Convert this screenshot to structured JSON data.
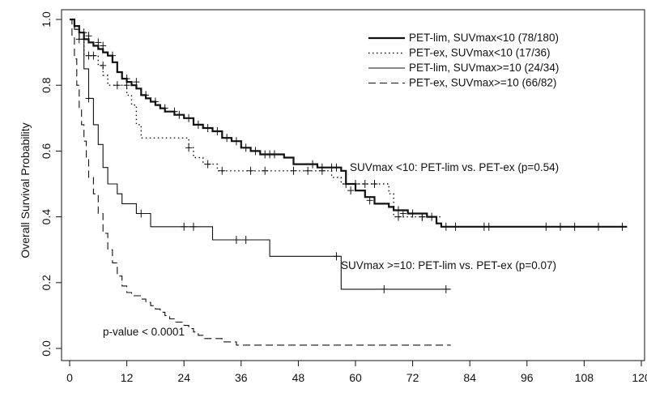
{
  "chart_data": {
    "type": "line",
    "subtype": "kaplan-meier",
    "ylabel": "Overall Survival Probability",
    "xlabel": "",
    "xlim": [
      0,
      120
    ],
    "ylim": [
      0,
      1
    ],
    "x_ticks": [
      0,
      12,
      24,
      36,
      48,
      60,
      72,
      84,
      96,
      108,
      120
    ],
    "y_ticks": [
      "0.0",
      "0.2",
      "0.4",
      "0.6",
      "0.8",
      "1.0"
    ],
    "grid": false,
    "legend_position": "top-right",
    "series": [
      {
        "name": "PET-lim, SUVmax<10 (78/180)",
        "line_style": "solid-thick",
        "steps": [
          [
            0,
            1.0
          ],
          [
            1,
            0.98
          ],
          [
            2,
            0.96
          ],
          [
            3,
            0.94
          ],
          [
            4,
            0.93
          ],
          [
            5,
            0.92
          ],
          [
            6,
            0.91
          ],
          [
            7,
            0.9
          ],
          [
            8,
            0.89
          ],
          [
            9,
            0.87
          ],
          [
            10,
            0.84
          ],
          [
            11,
            0.82
          ],
          [
            12,
            0.81
          ],
          [
            13,
            0.8
          ],
          [
            14,
            0.79
          ],
          [
            15,
            0.77
          ],
          [
            16,
            0.76
          ],
          [
            17,
            0.75
          ],
          [
            18,
            0.74
          ],
          [
            19,
            0.73
          ],
          [
            20,
            0.72
          ],
          [
            22,
            0.71
          ],
          [
            24,
            0.7
          ],
          [
            26,
            0.68
          ],
          [
            28,
            0.67
          ],
          [
            30,
            0.66
          ],
          [
            32,
            0.64
          ],
          [
            34,
            0.63
          ],
          [
            36,
            0.61
          ],
          [
            38,
            0.6
          ],
          [
            40,
            0.59
          ],
          [
            44,
            0.59
          ],
          [
            45,
            0.58
          ],
          [
            47,
            0.56
          ],
          [
            50,
            0.56
          ],
          [
            52,
            0.55
          ],
          [
            56,
            0.55
          ],
          [
            57,
            0.54
          ],
          [
            58,
            0.5
          ],
          [
            60,
            0.48
          ],
          [
            62,
            0.46
          ],
          [
            64,
            0.44
          ],
          [
            67,
            0.43
          ],
          [
            68,
            0.42
          ],
          [
            71,
            0.41
          ],
          [
            75,
            0.4
          ],
          [
            77,
            0.38
          ],
          [
            78,
            0.37
          ],
          [
            117,
            0.37
          ]
        ],
        "censors": [
          [
            3,
            0.96
          ],
          [
            4,
            0.95
          ],
          [
            6,
            0.93
          ],
          [
            7,
            0.92
          ],
          [
            9,
            0.89
          ],
          [
            12,
            0.82
          ],
          [
            14,
            0.81
          ],
          [
            16,
            0.77
          ],
          [
            18,
            0.75
          ],
          [
            20,
            0.73
          ],
          [
            22,
            0.72
          ],
          [
            23,
            0.71
          ],
          [
            25,
            0.7
          ],
          [
            27,
            0.68
          ],
          [
            29,
            0.67
          ],
          [
            31,
            0.66
          ],
          [
            33,
            0.64
          ],
          [
            35,
            0.63
          ],
          [
            37,
            0.61
          ],
          [
            39,
            0.6
          ],
          [
            41,
            0.59
          ],
          [
            42,
            0.59
          ],
          [
            43,
            0.59
          ],
          [
            51,
            0.56
          ],
          [
            53,
            0.55
          ],
          [
            55,
            0.55
          ],
          [
            56,
            0.55
          ],
          [
            59,
            0.48
          ],
          [
            63,
            0.45
          ],
          [
            69,
            0.42
          ],
          [
            70,
            0.41
          ],
          [
            72,
            0.41
          ],
          [
            74,
            0.4
          ],
          [
            76,
            0.4
          ],
          [
            79,
            0.37
          ],
          [
            81,
            0.37
          ],
          [
            87,
            0.37
          ],
          [
            88,
            0.37
          ],
          [
            100,
            0.37
          ],
          [
            103,
            0.37
          ],
          [
            106,
            0.37
          ],
          [
            111,
            0.37
          ],
          [
            116,
            0.37
          ]
        ]
      },
      {
        "name": "PET-ex, SUVmax<10 (17/36)",
        "line_style": "dotted",
        "steps": [
          [
            0,
            1.0
          ],
          [
            1,
            0.97
          ],
          [
            2,
            0.94
          ],
          [
            3,
            0.89
          ],
          [
            6,
            0.86
          ],
          [
            7,
            0.83
          ],
          [
            8,
            0.8
          ],
          [
            12,
            0.77
          ],
          [
            13,
            0.74
          ],
          [
            14,
            0.68
          ],
          [
            15,
            0.64
          ],
          [
            24,
            0.64
          ],
          [
            25,
            0.61
          ],
          [
            26,
            0.58
          ],
          [
            28,
            0.56
          ],
          [
            31,
            0.54
          ],
          [
            46,
            0.54
          ],
          [
            52,
            0.54
          ],
          [
            55,
            0.52
          ],
          [
            57,
            0.5
          ],
          [
            67,
            0.47
          ],
          [
            68,
            0.4
          ],
          [
            78,
            0.4
          ]
        ],
        "censors": [
          [
            2,
            0.94
          ],
          [
            4,
            0.89
          ],
          [
            5,
            0.89
          ],
          [
            7,
            0.86
          ],
          [
            10,
            0.8
          ],
          [
            12,
            0.8
          ],
          [
            25,
            0.61
          ],
          [
            29,
            0.56
          ],
          [
            32,
            0.54
          ],
          [
            38,
            0.54
          ],
          [
            41,
            0.54
          ],
          [
            47,
            0.54
          ],
          [
            50,
            0.54
          ],
          [
            53,
            0.54
          ],
          [
            58,
            0.5
          ],
          [
            60,
            0.5
          ],
          [
            62,
            0.5
          ],
          [
            64,
            0.5
          ],
          [
            69,
            0.4
          ],
          [
            74,
            0.4
          ]
        ]
      },
      {
        "name": "PET-lim, SUVmax>=10 (24/34)",
        "line_style": "solid-thin",
        "steps": [
          [
            0,
            1.0
          ],
          [
            1,
            0.97
          ],
          [
            2,
            0.94
          ],
          [
            3,
            0.85
          ],
          [
            4,
            0.76
          ],
          [
            5,
            0.68
          ],
          [
            6,
            0.62
          ],
          [
            7,
            0.55
          ],
          [
            8,
            0.5
          ],
          [
            10,
            0.47
          ],
          [
            11,
            0.44
          ],
          [
            14,
            0.41
          ],
          [
            17,
            0.37
          ],
          [
            29,
            0.37
          ],
          [
            30,
            0.33
          ],
          [
            41,
            0.33
          ],
          [
            42,
            0.28
          ],
          [
            56,
            0.28
          ],
          [
            57,
            0.18
          ],
          [
            80,
            0.18
          ]
        ],
        "censors": [
          [
            4,
            0.76
          ],
          [
            15,
            0.41
          ],
          [
            24,
            0.37
          ],
          [
            26,
            0.37
          ],
          [
            35,
            0.33
          ],
          [
            37,
            0.33
          ],
          [
            56,
            0.28
          ],
          [
            66,
            0.18
          ],
          [
            79,
            0.18
          ]
        ]
      },
      {
        "name": "PET-ex, SUVmax>=10 (66/82)",
        "line_style": "dashed",
        "steps": [
          [
            0,
            1.0
          ],
          [
            0.5,
            0.95
          ],
          [
            1,
            0.88
          ],
          [
            1.5,
            0.8
          ],
          [
            2,
            0.73
          ],
          [
            2.5,
            0.68
          ],
          [
            3,
            0.63
          ],
          [
            3.5,
            0.58
          ],
          [
            4,
            0.52
          ],
          [
            5,
            0.47
          ],
          [
            6,
            0.41
          ],
          [
            7,
            0.35
          ],
          [
            8,
            0.3
          ],
          [
            9,
            0.26
          ],
          [
            10,
            0.22
          ],
          [
            11,
            0.19
          ],
          [
            12,
            0.17
          ],
          [
            13,
            0.16
          ],
          [
            14,
            0.16
          ],
          [
            15,
            0.15
          ],
          [
            16,
            0.14
          ],
          [
            17,
            0.13
          ],
          [
            18,
            0.12
          ],
          [
            19,
            0.11
          ],
          [
            20,
            0.1
          ],
          [
            21,
            0.09
          ],
          [
            22,
            0.08
          ],
          [
            24,
            0.07
          ],
          [
            25,
            0.06
          ],
          [
            26,
            0.05
          ],
          [
            27,
            0.04
          ],
          [
            28,
            0.03
          ],
          [
            30,
            0.03
          ],
          [
            32,
            0.02
          ],
          [
            35,
            0.01
          ],
          [
            37,
            0.01
          ],
          [
            38,
            0.01
          ],
          [
            41,
            0.01
          ],
          [
            42,
            0.01
          ],
          [
            67,
            0.01
          ],
          [
            68,
            0.01
          ],
          [
            80,
            0.01
          ]
        ],
        "censors": []
      }
    ],
    "annotations": [
      "SUVmax <10: PET-lim vs. PET-ex (p=0.54)",
      "SUVmax >=10: PET-lim vs. PET-ex (p=0.07)",
      "p-value < 0.0001"
    ]
  }
}
